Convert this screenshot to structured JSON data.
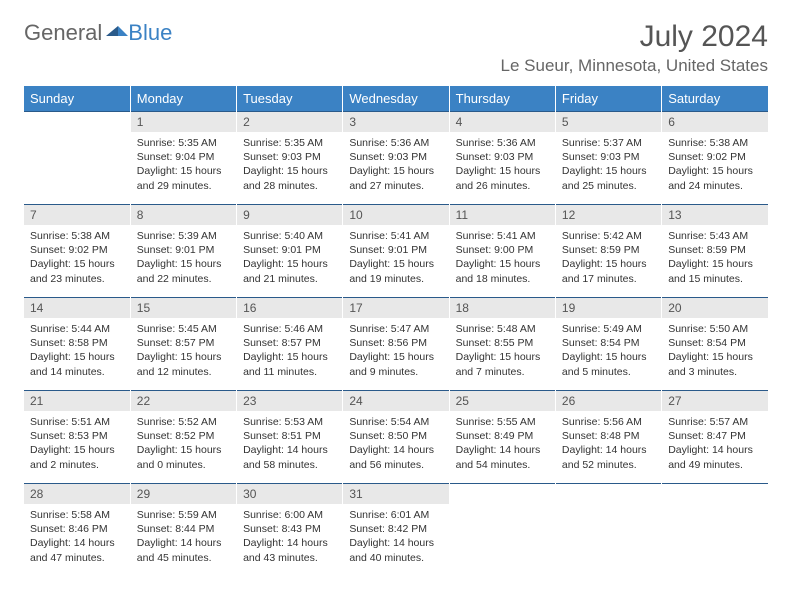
{
  "logo": {
    "text1": "General",
    "text2": "Blue"
  },
  "title": "July 2024",
  "location": "Le Sueur, Minnesota, United States",
  "header_bg": "#3b82c4",
  "days": [
    "Sunday",
    "Monday",
    "Tuesday",
    "Wednesday",
    "Thursday",
    "Friday",
    "Saturday"
  ],
  "weeks": [
    {
      "nums": [
        "",
        "1",
        "2",
        "3",
        "4",
        "5",
        "6"
      ],
      "cells": [
        null,
        {
          "sr": "5:35 AM",
          "ss": "9:04 PM",
          "dl": "15 hours and 29 minutes."
        },
        {
          "sr": "5:35 AM",
          "ss": "9:03 PM",
          "dl": "15 hours and 28 minutes."
        },
        {
          "sr": "5:36 AM",
          "ss": "9:03 PM",
          "dl": "15 hours and 27 minutes."
        },
        {
          "sr": "5:36 AM",
          "ss": "9:03 PM",
          "dl": "15 hours and 26 minutes."
        },
        {
          "sr": "5:37 AM",
          "ss": "9:03 PM",
          "dl": "15 hours and 25 minutes."
        },
        {
          "sr": "5:38 AM",
          "ss": "9:02 PM",
          "dl": "15 hours and 24 minutes."
        }
      ]
    },
    {
      "nums": [
        "7",
        "8",
        "9",
        "10",
        "11",
        "12",
        "13"
      ],
      "cells": [
        {
          "sr": "5:38 AM",
          "ss": "9:02 PM",
          "dl": "15 hours and 23 minutes."
        },
        {
          "sr": "5:39 AM",
          "ss": "9:01 PM",
          "dl": "15 hours and 22 minutes."
        },
        {
          "sr": "5:40 AM",
          "ss": "9:01 PM",
          "dl": "15 hours and 21 minutes."
        },
        {
          "sr": "5:41 AM",
          "ss": "9:01 PM",
          "dl": "15 hours and 19 minutes."
        },
        {
          "sr": "5:41 AM",
          "ss": "9:00 PM",
          "dl": "15 hours and 18 minutes."
        },
        {
          "sr": "5:42 AM",
          "ss": "8:59 PM",
          "dl": "15 hours and 17 minutes."
        },
        {
          "sr": "5:43 AM",
          "ss": "8:59 PM",
          "dl": "15 hours and 15 minutes."
        }
      ]
    },
    {
      "nums": [
        "14",
        "15",
        "16",
        "17",
        "18",
        "19",
        "20"
      ],
      "cells": [
        {
          "sr": "5:44 AM",
          "ss": "8:58 PM",
          "dl": "15 hours and 14 minutes."
        },
        {
          "sr": "5:45 AM",
          "ss": "8:57 PM",
          "dl": "15 hours and 12 minutes."
        },
        {
          "sr": "5:46 AM",
          "ss": "8:57 PM",
          "dl": "15 hours and 11 minutes."
        },
        {
          "sr": "5:47 AM",
          "ss": "8:56 PM",
          "dl": "15 hours and 9 minutes."
        },
        {
          "sr": "5:48 AM",
          "ss": "8:55 PM",
          "dl": "15 hours and 7 minutes."
        },
        {
          "sr": "5:49 AM",
          "ss": "8:54 PM",
          "dl": "15 hours and 5 minutes."
        },
        {
          "sr": "5:50 AM",
          "ss": "8:54 PM",
          "dl": "15 hours and 3 minutes."
        }
      ]
    },
    {
      "nums": [
        "21",
        "22",
        "23",
        "24",
        "25",
        "26",
        "27"
      ],
      "cells": [
        {
          "sr": "5:51 AM",
          "ss": "8:53 PM",
          "dl": "15 hours and 2 minutes."
        },
        {
          "sr": "5:52 AM",
          "ss": "8:52 PM",
          "dl": "15 hours and 0 minutes."
        },
        {
          "sr": "5:53 AM",
          "ss": "8:51 PM",
          "dl": "14 hours and 58 minutes."
        },
        {
          "sr": "5:54 AM",
          "ss": "8:50 PM",
          "dl": "14 hours and 56 minutes."
        },
        {
          "sr": "5:55 AM",
          "ss": "8:49 PM",
          "dl": "14 hours and 54 minutes."
        },
        {
          "sr": "5:56 AM",
          "ss": "8:48 PM",
          "dl": "14 hours and 52 minutes."
        },
        {
          "sr": "5:57 AM",
          "ss": "8:47 PM",
          "dl": "14 hours and 49 minutes."
        }
      ]
    },
    {
      "nums": [
        "28",
        "29",
        "30",
        "31",
        "",
        "",
        ""
      ],
      "cells": [
        {
          "sr": "5:58 AM",
          "ss": "8:46 PM",
          "dl": "14 hours and 47 minutes."
        },
        {
          "sr": "5:59 AM",
          "ss": "8:44 PM",
          "dl": "14 hours and 45 minutes."
        },
        {
          "sr": "6:00 AM",
          "ss": "8:43 PM",
          "dl": "14 hours and 43 minutes."
        },
        {
          "sr": "6:01 AM",
          "ss": "8:42 PM",
          "dl": "14 hours and 40 minutes."
        },
        null,
        null,
        null
      ]
    }
  ],
  "labels": {
    "sunrise": "Sunrise:",
    "sunset": "Sunset:",
    "daylight": "Daylight:"
  }
}
